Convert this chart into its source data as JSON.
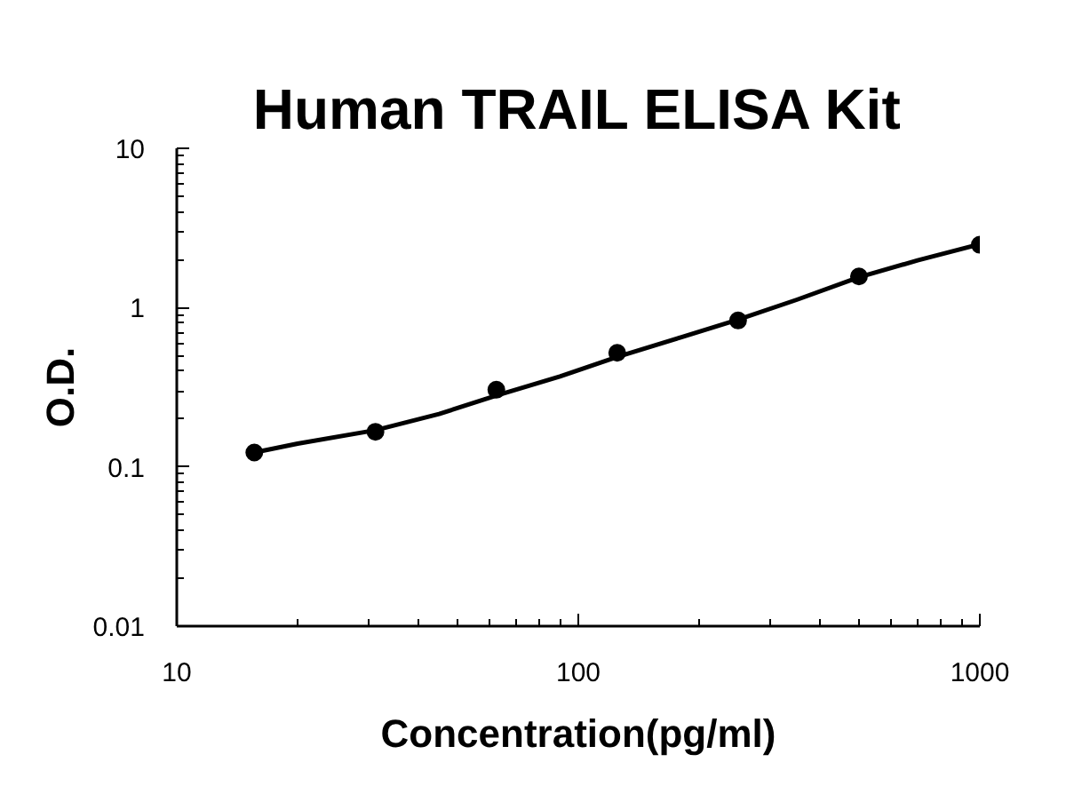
{
  "chart_data": {
    "type": "scatter",
    "title": "Human TRAIL ELISA Kit",
    "xlabel": "Concentration(pg/ml)",
    "ylabel": "O.D.",
    "log": "xy",
    "xlim": [
      10,
      1000
    ],
    "ylim": [
      0.01,
      10
    ],
    "xticks": [
      10,
      100,
      1000
    ],
    "yticks": [
      0.01,
      0.1,
      1,
      10
    ],
    "marker": "circle",
    "series": [
      {
        "type": "line",
        "color": "#000000",
        "marker": "none",
        "line_style": "solid",
        "x": [
          15.6,
          20,
          31.25,
          45,
          62.5,
          90,
          125,
          180,
          250,
          350,
          500,
          700,
          1000
        ],
        "values": [
          0.123,
          0.14,
          0.17,
          0.215,
          0.28,
          0.37,
          0.49,
          0.65,
          0.84,
          1.12,
          1.55,
          1.98,
          2.5
        ]
      },
      {
        "color": "#000000",
        "x": [
          15.6,
          31.25,
          62.5,
          125,
          250,
          500,
          1000
        ],
        "values": [
          0.123,
          0.166,
          0.305,
          0.52,
          0.83,
          1.57,
          2.48
        ]
      }
    ]
  }
}
